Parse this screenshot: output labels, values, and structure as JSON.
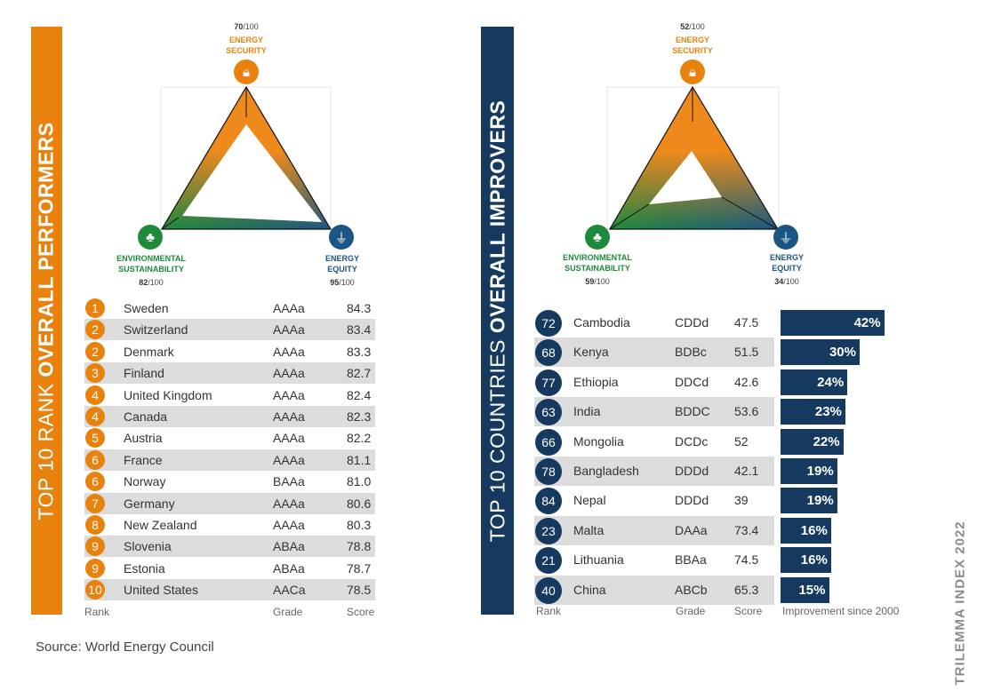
{
  "left_panel": {
    "title_prefix": "TOP 10 RANK ",
    "title_bold": "OVERALL PERFORMERS",
    "triangle": {
      "security": {
        "label1": "ENERGY",
        "label2": "SECURITY",
        "score": "70",
        "max": "/100"
      },
      "sustainability": {
        "label1": "ENVIRONMENTAL",
        "label2": "SUSTAINABILITY",
        "score": "82",
        "max": "/100"
      },
      "equity": {
        "label1": "ENERGY",
        "label2": "EQUITY",
        "score": "95",
        "max": "/100"
      }
    },
    "rows": [
      {
        "rank": "1",
        "country": "Sweden",
        "grade": "AAAa",
        "score": "84.3"
      },
      {
        "rank": "2",
        "country": "Switzerland",
        "grade": "AAAa",
        "score": "83.4"
      },
      {
        "rank": "2",
        "country": "Denmark",
        "grade": "AAAa",
        "score": "83.3"
      },
      {
        "rank": "3",
        "country": "Finland",
        "grade": "AAAa",
        "score": "82.7"
      },
      {
        "rank": "4",
        "country": "United Kingdom",
        "grade": "AAAa",
        "score": "82.4"
      },
      {
        "rank": "4",
        "country": "Canada",
        "grade": "AAAa",
        "score": "82.3"
      },
      {
        "rank": "5",
        "country": "Austria",
        "grade": "AAAa",
        "score": "82.2"
      },
      {
        "rank": "6",
        "country": "France",
        "grade": "AAAa",
        "score": "81.1"
      },
      {
        "rank": "6",
        "country": "Norway",
        "grade": "BAAa",
        "score": "81.0"
      },
      {
        "rank": "7",
        "country": "Germany",
        "grade": "AAAa",
        "score": "80.6"
      },
      {
        "rank": "8",
        "country": "New Zealand",
        "grade": "AAAa",
        "score": "80.3"
      },
      {
        "rank": "9",
        "country": "Slovenia",
        "grade": "ABAa",
        "score": "78.8"
      },
      {
        "rank": "9",
        "country": "Estonia",
        "grade": "ABAa",
        "score": "78.7"
      },
      {
        "rank": "10",
        "country": "United States",
        "grade": "AACa",
        "score": "78.5"
      }
    ],
    "headers": {
      "rank": "Rank",
      "grade": "Grade",
      "score": "Score"
    }
  },
  "right_panel": {
    "title_prefix": "TOP 10 COUNTRIES ",
    "title_bold": "OVERALL IMPROVERS",
    "triangle": {
      "security": {
        "label1": "ENERGY",
        "label2": "SECURITY",
        "score": "52",
        "max": "/100"
      },
      "sustainability": {
        "label1": "ENVIRONMENTAL",
        "label2": "SUSTAINABILITY",
        "score": "59",
        "max": "/100"
      },
      "equity": {
        "label1": "ENERGY",
        "label2": "EQUITY",
        "score": "34",
        "max": "/100"
      }
    },
    "headers": {
      "rank": "Rank",
      "grade": "Grade",
      "score": "Score",
      "improvement": "Improvement since 2000"
    }
  },
  "chart_data": {
    "type": "bar",
    "title": "Top 10 Countries Overall Improvers",
    "xlabel": "Improvement since 2000",
    "categories": [
      "Cambodia",
      "Kenya",
      "Ethiopia",
      "India",
      "Mongolia",
      "Bangladesh",
      "Nepal",
      "Malta",
      "Lithuania",
      "China"
    ],
    "ranks": [
      "72",
      "68",
      "77",
      "63",
      "66",
      "78",
      "84",
      "23",
      "21",
      "40"
    ],
    "grades": [
      "CDDd",
      "BDBc",
      "DDCd",
      "BDDC",
      "DCDc",
      "DDDd",
      "DDDd",
      "DAAa",
      "BBAa",
      "ABCb"
    ],
    "scores": [
      "47.5",
      "51.5",
      "42.6",
      "53.6",
      "52",
      "42.1",
      "39",
      "73.4",
      "74.5",
      "65.3"
    ],
    "values": [
      42,
      30,
      24,
      23,
      22,
      19,
      19,
      16,
      16,
      15
    ],
    "labels": [
      "42%",
      "30%",
      "24%",
      "23%",
      "22%",
      "19%",
      "19%",
      "16%",
      "16%",
      "15%"
    ]
  },
  "source": "Source: World Energy Council",
  "side_label": "TRILEMMA INDEX 2022",
  "colors": {
    "orange": "#e8820c",
    "navy": "#163a5f",
    "green": "#1e8a3a",
    "blue": "#1a5584"
  }
}
